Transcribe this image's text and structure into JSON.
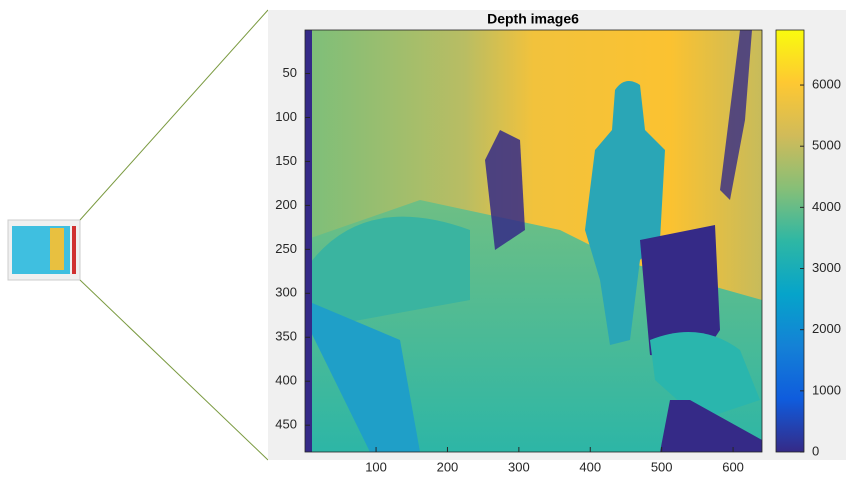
{
  "chart_data": {
    "type": "image",
    "title": "Depth image6",
    "xlim": [
      0.5,
      640.5
    ],
    "xticks": [
      100,
      200,
      300,
      400,
      500,
      600
    ],
    "ylim": [
      0.5,
      480.5
    ],
    "yticks": [
      50,
      100,
      150,
      200,
      250,
      300,
      350,
      400,
      450
    ],
    "ydir": "reverse",
    "colorbar": {
      "clim": [
        0,
        6900
      ],
      "ticks": [
        0,
        1000,
        2000,
        3000,
        4000,
        5000,
        6000
      ],
      "colormap": [
        "#352a87",
        "#0f5cdd",
        "#1481d6",
        "#06a4ca",
        "#2eb7a4",
        "#87bf77",
        "#d1bb59",
        "#fec832",
        "#f9fb0e"
      ]
    }
  }
}
